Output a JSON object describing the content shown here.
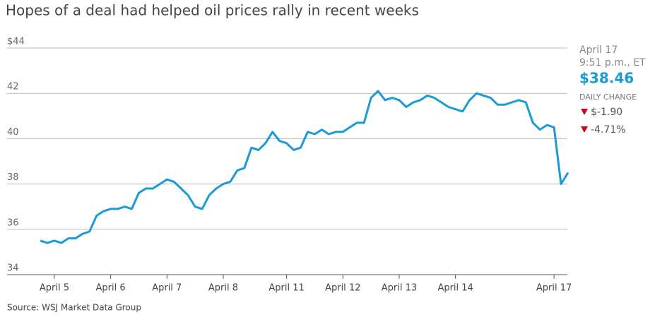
{
  "chart_data": {
    "type": "line",
    "title": "Hopes of a deal had helped oil prices rally in recent weeks",
    "source": "Source: WSJ Market Data Group",
    "categories": [
      null,
      null,
      "April 5",
      null,
      null,
      null,
      null,
      null,
      null,
      null,
      "April 6",
      null,
      null,
      null,
      null,
      null,
      null,
      null,
      "April 7",
      null,
      null,
      null,
      null,
      null,
      null,
      null,
      "April 8",
      null,
      null,
      null,
      null,
      null,
      null,
      null,
      null,
      "April 11",
      null,
      null,
      null,
      null,
      null,
      null,
      null,
      "April 12",
      null,
      null,
      null,
      null,
      null,
      null,
      null,
      "April 13",
      null,
      null,
      null,
      null,
      null,
      null,
      null,
      "April 14",
      null,
      null,
      null,
      null,
      null,
      null,
      null,
      null,
      null,
      null,
      null,
      null,
      null,
      "April 17",
      null,
      null
    ],
    "series": [
      {
        "name": "Oil price",
        "color": "#1a9bd7",
        "values": [
          35.5,
          35.4,
          35.5,
          35.4,
          35.6,
          35.6,
          35.8,
          35.9,
          36.6,
          36.8,
          36.9,
          36.9,
          37.0,
          36.9,
          37.6,
          37.8,
          37.8,
          38.0,
          38.2,
          38.1,
          37.8,
          37.5,
          37.0,
          36.9,
          37.5,
          37.8,
          38.0,
          38.1,
          38.6,
          38.7,
          39.6,
          39.5,
          39.8,
          40.3,
          39.9,
          39.8,
          39.5,
          39.6,
          40.3,
          40.2,
          40.4,
          40.2,
          40.3,
          40.3,
          40.5,
          40.7,
          40.7,
          41.8,
          42.1,
          41.7,
          41.8,
          41.7,
          41.4,
          41.6,
          41.7,
          41.9,
          41.8,
          41.6,
          41.4,
          41.3,
          41.2,
          41.7,
          42.0,
          41.9,
          41.8,
          41.5,
          41.5,
          41.6,
          41.7,
          41.6,
          40.7,
          40.4,
          40.6,
          40.5,
          38.0,
          38.5
        ]
      }
    ],
    "ylim": [
      34,
      44
    ],
    "yticks": [
      34,
      36,
      38,
      40,
      42,
      {
        "value": 44,
        "label": "$44"
      }
    ],
    "grid": true,
    "latest": {
      "date": "April 17",
      "time": "9:51 p.m., ET",
      "price": "$38.46",
      "change_label": "DAILY CHANGE",
      "change": "$-1.90",
      "change_pct": "-4.71%"
    }
  }
}
